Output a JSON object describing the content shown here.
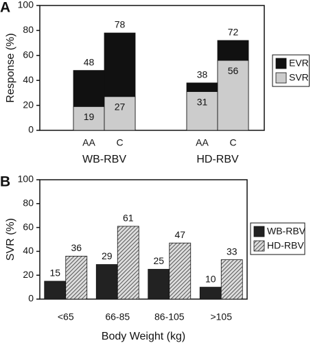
{
  "chart_data": [
    {
      "type": "bar",
      "bar_mode": "overlay",
      "panel_label": "A",
      "ylabel": "Response (%)",
      "categories": [
        "AA",
        "C",
        "AA",
        "C"
      ],
      "groups": [
        "WB-RBV",
        "HD-RBV"
      ],
      "series": [
        {
          "name": "EVR",
          "color": "#111111",
          "values": [
            48,
            78,
            38,
            72
          ]
        },
        {
          "name": "SVR",
          "color": "#cccccc",
          "values": [
            19,
            27,
            31,
            56
          ]
        }
      ],
      "ylim": [
        0,
        100
      ],
      "yticks": [
        0,
        20,
        40,
        60,
        80,
        100
      ],
      "legend": "right"
    },
    {
      "type": "bar",
      "bar_mode": "group",
      "panel_label": "B",
      "ylabel": "SVR (%)",
      "xlabel": "Body Weight (kg)",
      "categories": [
        "<65",
        "66-85",
        "86-105",
        ">105"
      ],
      "series": [
        {
          "name": "WB-RBV",
          "color": "#222222",
          "values": [
            15,
            29,
            25,
            10
          ]
        },
        {
          "name": "HD-RBV",
          "color": "#777777",
          "pattern": "hatch",
          "values": [
            36,
            61,
            47,
            33
          ]
        }
      ],
      "ylim": [
        0,
        100
      ],
      "yticks": [
        0,
        20,
        40,
        60,
        80,
        100
      ],
      "legend": "right"
    }
  ]
}
